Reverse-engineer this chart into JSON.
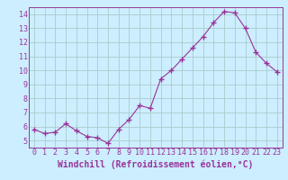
{
  "x": [
    0,
    1,
    2,
    3,
    4,
    5,
    6,
    7,
    8,
    9,
    10,
    11,
    12,
    13,
    14,
    15,
    16,
    17,
    18,
    19,
    20,
    21,
    22,
    23
  ],
  "y": [
    5.8,
    5.5,
    5.6,
    6.2,
    5.7,
    5.3,
    5.2,
    4.8,
    5.8,
    6.5,
    7.5,
    7.3,
    9.4,
    10.0,
    10.8,
    11.6,
    12.4,
    13.4,
    14.2,
    14.1,
    13.0,
    11.3,
    10.5,
    9.9
  ],
  "line_color": "#993399",
  "marker": "+",
  "marker_size": 4,
  "bg_color": "#cceeff",
  "grid_color": "#aacccc",
  "xlabel": "Windchill (Refroidissement éolien,°C)",
  "ylim": [
    4.5,
    14.5
  ],
  "xlim": [
    -0.5,
    23.5
  ],
  "yticks": [
    5,
    6,
    7,
    8,
    9,
    10,
    11,
    12,
    13,
    14
  ],
  "xticks": [
    0,
    1,
    2,
    3,
    4,
    5,
    6,
    7,
    8,
    9,
    10,
    11,
    12,
    13,
    14,
    15,
    16,
    17,
    18,
    19,
    20,
    21,
    22,
    23
  ],
  "tick_color": "#993399",
  "label_fontsize": 7,
  "tick_fontsize": 6
}
